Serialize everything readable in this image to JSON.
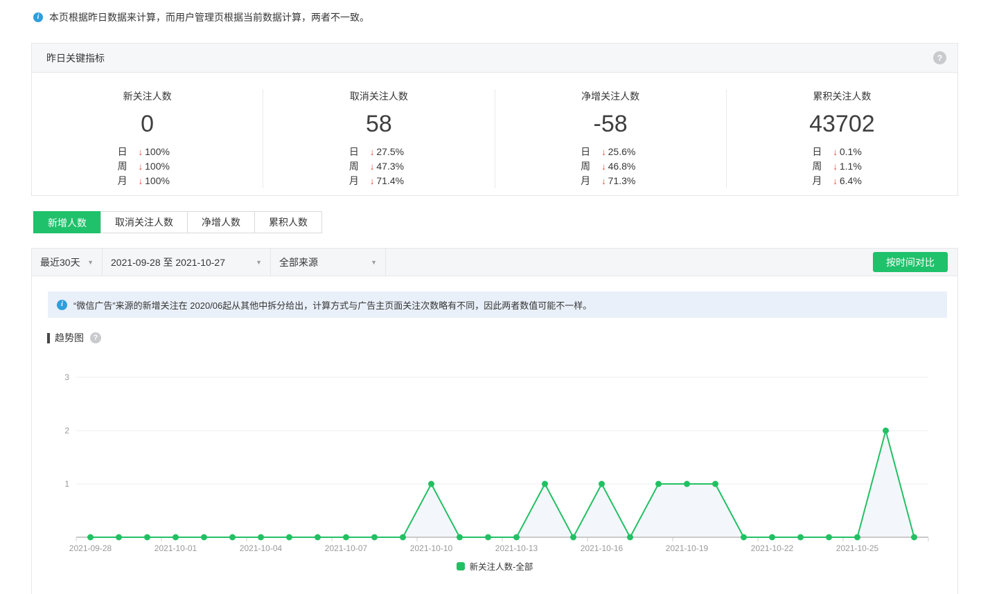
{
  "colors": {
    "accent_green": "#1FC16A",
    "line_green": "#22C063",
    "down_red": "#E8402F",
    "info_blue": "#2D9FDD"
  },
  "top_note": "本页根据昨日数据来计算，而用户管理页根据当前数据计算，两者不一致。",
  "metrics_card": {
    "title": "昨日关键指标",
    "metrics": [
      {
        "label": "新关注人数",
        "value": "0",
        "rows": [
          {
            "period": "日",
            "direction": "down",
            "value": "100%"
          },
          {
            "period": "周",
            "direction": "down",
            "value": "100%"
          },
          {
            "period": "月",
            "direction": "down",
            "value": "100%"
          }
        ]
      },
      {
        "label": "取消关注人数",
        "value": "58",
        "rows": [
          {
            "period": "日",
            "direction": "down",
            "value": "27.5%"
          },
          {
            "period": "周",
            "direction": "down",
            "value": "47.3%"
          },
          {
            "period": "月",
            "direction": "down",
            "value": "71.4%"
          }
        ]
      },
      {
        "label": "净增关注人数",
        "value": "-58",
        "rows": [
          {
            "period": "日",
            "direction": "down",
            "value": "25.6%"
          },
          {
            "period": "周",
            "direction": "down",
            "value": "46.8%"
          },
          {
            "period": "月",
            "direction": "down",
            "value": "71.3%"
          }
        ]
      },
      {
        "label": "累积关注人数",
        "value": "43702",
        "rows": [
          {
            "period": "日",
            "direction": "down",
            "value": "0.1%"
          },
          {
            "period": "周",
            "direction": "down",
            "value": "1.1%"
          },
          {
            "period": "月",
            "direction": "down",
            "value": "6.4%"
          }
        ]
      }
    ]
  },
  "tabs": [
    {
      "label": "新增人数",
      "active": true
    },
    {
      "label": "取消关注人数",
      "active": false
    },
    {
      "label": "净增人数",
      "active": false
    },
    {
      "label": "累积人数",
      "active": false
    }
  ],
  "filter_bar": {
    "range_preset": "最近30天",
    "date_range": "2021-09-28 至 2021-10-27",
    "source": "全部来源",
    "compare_button": "按时间对比"
  },
  "notice_banner": "“微信广告”来源的新增关注在 2020/06起从其他中拆分给出，计算方式与广告主页面关注次数略有不同，因此两者数值可能不一样。",
  "trend_section": {
    "title": "趋势图"
  },
  "chart_data": {
    "type": "line",
    "title": "趋势图",
    "x": [
      "2021-09-28",
      "2021-09-29",
      "2021-09-30",
      "2021-10-01",
      "2021-10-02",
      "2021-10-03",
      "2021-10-04",
      "2021-10-05",
      "2021-10-06",
      "2021-10-07",
      "2021-10-08",
      "2021-10-09",
      "2021-10-10",
      "2021-10-11",
      "2021-10-12",
      "2021-10-13",
      "2021-10-14",
      "2021-10-15",
      "2021-10-16",
      "2021-10-17",
      "2021-10-18",
      "2021-10-19",
      "2021-10-20",
      "2021-10-21",
      "2021-10-22",
      "2021-10-23",
      "2021-10-24",
      "2021-10-25",
      "2021-10-26",
      "2021-10-27"
    ],
    "x_label_interval": 3,
    "series": [
      {
        "name": "新关注人数-全部",
        "color": "#22C063",
        "values": [
          0,
          0,
          0,
          0,
          0,
          0,
          0,
          0,
          0,
          0,
          0,
          0,
          1,
          0,
          0,
          0,
          1,
          0,
          1,
          0,
          1,
          1,
          1,
          0,
          0,
          0,
          0,
          0,
          2,
          0
        ]
      }
    ],
    "ylim": [
      0,
      3
    ],
    "yticks": [
      1,
      2,
      3
    ],
    "grid": true,
    "legend_position": "bottom"
  }
}
